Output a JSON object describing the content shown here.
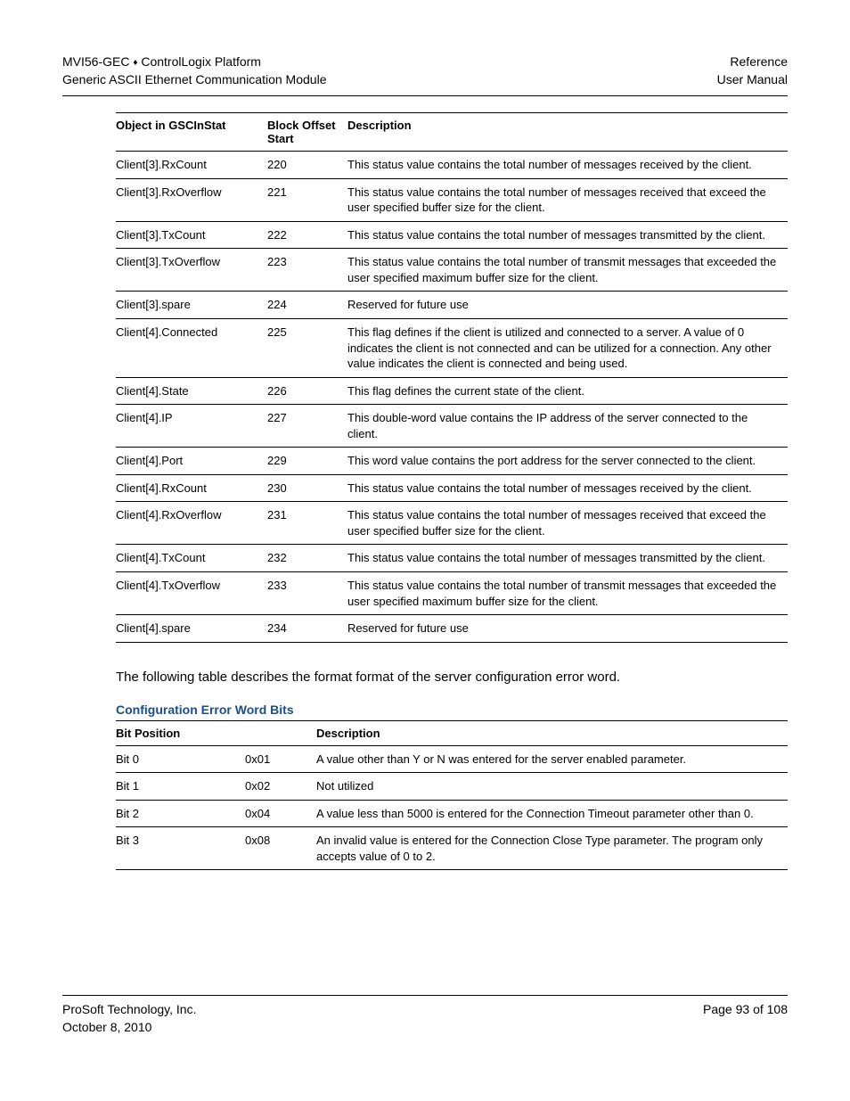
{
  "header": {
    "left1a": "MVI56-GEC ",
    "left1b": " ControlLogix Platform",
    "left2": "Generic ASCII Ethernet Communication Module",
    "right1": "Reference",
    "right2": "User Manual"
  },
  "table1": {
    "headers": [
      "Object in GSCInStat",
      "Block Offset Start",
      "Description"
    ],
    "rows": [
      [
        "Client[3].RxCount",
        "220",
        "This status value contains the total number of messages received by the client."
      ],
      [
        "Client[3].RxOverflow",
        "221",
        "This status value contains the total number of messages received that exceed the user specified buffer size for the client."
      ],
      [
        "Client[3].TxCount",
        "222",
        "This status value contains the total number of messages transmitted by the client."
      ],
      [
        "Client[3].TxOverflow",
        "223",
        "This status value contains the total number of transmit messages that exceeded the user specified maximum buffer size for the client."
      ],
      [
        "Client[3].spare",
        "224",
        "Reserved for future use"
      ],
      [
        "Client[4].Connected",
        "225",
        "This flag defines if the client is utilized and connected to a server. A value of 0 indicates the client is not connected and can be utilized for a connection. Any other value indicates the client is connected and being used."
      ],
      [
        "Client[4].State",
        "226",
        "This flag defines the current state of the client."
      ],
      [
        "Client[4].IP",
        "227",
        "This double-word value contains the IP address of the server connected to the client."
      ],
      [
        "Client[4].Port",
        "229",
        "This word value contains the port address for the server connected to the client."
      ],
      [
        "Client[4].RxCount",
        "230",
        "This status value contains the total number of messages received by the client."
      ],
      [
        "Client[4].RxOverflow",
        "231",
        "This status value contains the total number of messages received that exceed the user specified buffer size for the client."
      ],
      [
        "Client[4].TxCount",
        "232",
        "This status value contains the total number of messages transmitted by the client."
      ],
      [
        "Client[4].TxOverflow",
        "233",
        "This status value contains the total number of transmit messages that exceeded the user specified maximum buffer size for the client."
      ],
      [
        "Client[4].spare",
        "234",
        "Reserved for future use"
      ]
    ]
  },
  "paragraph": "The following table describes the format format of the server configuration error word.",
  "subhead": "Configuration Error Word Bits",
  "table2": {
    "headers": [
      "Bit Position",
      "",
      "Description"
    ],
    "rows": [
      [
        "Bit 0",
        "0x01",
        "A value other than Y or N was entered for the server enabled parameter."
      ],
      [
        "Bit 1",
        "0x02",
        "Not utilized"
      ],
      [
        "Bit 2",
        "0x04",
        "A value less than 5000 is entered for the Connection Timeout parameter other than 0."
      ],
      [
        "Bit 3",
        "0x08",
        "An invalid value is entered for the Connection Close Type parameter. The program only accepts value of 0 to 2."
      ]
    ]
  },
  "footer": {
    "left1": "ProSoft Technology, Inc.",
    "left2": "October 8, 2010",
    "right1": "Page 93 of 108"
  }
}
